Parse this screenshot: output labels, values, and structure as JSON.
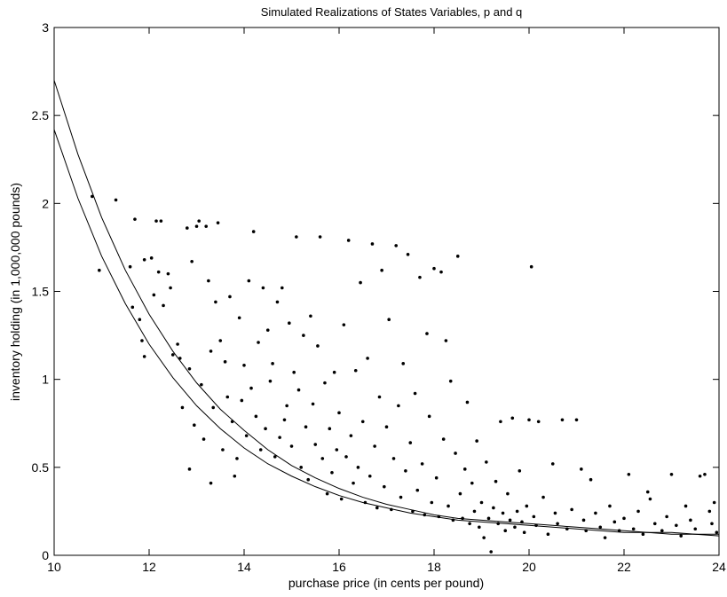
{
  "chart_data": {
    "type": "scatter",
    "title": "Simulated Realizations of States Variables, p and q",
    "xlabel": "purchase price (in cents per pound)",
    "ylabel": "inventory holding (in 1,000,000 pounds)",
    "xlim": [
      10,
      24
    ],
    "ylim": [
      0,
      3
    ],
    "xticks": [
      "10",
      "12",
      "14",
      "16",
      "18",
      "20",
      "22",
      "24"
    ],
    "yticks": [
      "0",
      "0.5",
      "1",
      "1.5",
      "2",
      "2.5",
      "3"
    ],
    "grid": false,
    "legend": "none",
    "marker_color": "#000000",
    "curves": [
      {
        "x": [
          10,
          10.5,
          11,
          11.5,
          12,
          12.5,
          13,
          13.5,
          14,
          14.5,
          15,
          15.5,
          16,
          16.5,
          17,
          17.5,
          18,
          18.5,
          19,
          19.5,
          20,
          20.5,
          21,
          21.5,
          22,
          22.5,
          23,
          23.5,
          24
        ],
        "y": [
          2.7,
          2.28,
          1.92,
          1.62,
          1.37,
          1.16,
          0.98,
          0.83,
          0.71,
          0.6,
          0.51,
          0.44,
          0.38,
          0.33,
          0.29,
          0.26,
          0.23,
          0.21,
          0.2,
          0.19,
          0.18,
          0.17,
          0.16,
          0.15,
          0.14,
          0.13,
          0.13,
          0.12,
          0.12
        ]
      },
      {
        "x": [
          10,
          10.5,
          11,
          11.5,
          12,
          12.5,
          13,
          13.5,
          14,
          14.5,
          15,
          15.5,
          16,
          16.5,
          17,
          17.5,
          18,
          18.5,
          19,
          19.5,
          20,
          20.5,
          21,
          21.5,
          22,
          22.5,
          23,
          23.5,
          24
        ],
        "y": [
          2.42,
          2.03,
          1.7,
          1.43,
          1.2,
          1.01,
          0.85,
          0.72,
          0.61,
          0.52,
          0.45,
          0.39,
          0.34,
          0.3,
          0.27,
          0.24,
          0.22,
          0.2,
          0.19,
          0.18,
          0.17,
          0.16,
          0.15,
          0.14,
          0.13,
          0.13,
          0.12,
          0.12,
          0.11
        ]
      }
    ],
    "points": [
      [
        10.8,
        2.04
      ],
      [
        10.95,
        1.62
      ],
      [
        11.3,
        2.02
      ],
      [
        11.6,
        1.64
      ],
      [
        11.7,
        1.91
      ],
      [
        11.65,
        1.41
      ],
      [
        11.8,
        1.34
      ],
      [
        11.9,
        1.13
      ],
      [
        11.85,
        1.22
      ],
      [
        11.9,
        1.68
      ],
      [
        12.05,
        1.69
      ],
      [
        12.1,
        1.48
      ],
      [
        12.15,
        1.9
      ],
      [
        12.25,
        1.9
      ],
      [
        12.3,
        1.42
      ],
      [
        12.2,
        1.61
      ],
      [
        12.4,
        1.6
      ],
      [
        12.45,
        1.52
      ],
      [
        12.5,
        1.14
      ],
      [
        12.6,
        1.2
      ],
      [
        12.65,
        1.12
      ],
      [
        12.7,
        0.84
      ],
      [
        12.8,
        1.86
      ],
      [
        12.85,
        1.06
      ],
      [
        12.9,
        1.67
      ],
      [
        12.95,
        0.74
      ],
      [
        12.85,
        0.49
      ],
      [
        13.0,
        1.87
      ],
      [
        13.05,
        1.9
      ],
      [
        13.1,
        0.97
      ],
      [
        13.15,
        0.66
      ],
      [
        13.2,
        1.87
      ],
      [
        13.25,
        1.56
      ],
      [
        13.3,
        1.16
      ],
      [
        13.35,
        0.84
      ],
      [
        13.4,
        1.44
      ],
      [
        13.45,
        1.89
      ],
      [
        13.5,
        1.22
      ],
      [
        13.55,
        0.6
      ],
      [
        13.6,
        1.1
      ],
      [
        13.65,
        0.9
      ],
      [
        13.3,
        0.41
      ],
      [
        13.7,
        1.47
      ],
      [
        13.75,
        0.76
      ],
      [
        13.8,
        0.45
      ],
      [
        13.85,
        0.55
      ],
      [
        13.9,
        1.35
      ],
      [
        13.95,
        0.88
      ],
      [
        14.0,
        1.08
      ],
      [
        14.05,
        0.68
      ],
      [
        14.1,
        1.56
      ],
      [
        14.15,
        0.95
      ],
      [
        14.2,
        1.84
      ],
      [
        14.25,
        0.79
      ],
      [
        14.3,
        1.21
      ],
      [
        14.35,
        0.6
      ],
      [
        14.4,
        1.52
      ],
      [
        14.45,
        0.72
      ],
      [
        14.5,
        1.28
      ],
      [
        14.55,
        0.99
      ],
      [
        14.6,
        1.09
      ],
      [
        14.65,
        0.56
      ],
      [
        14.7,
        1.44
      ],
      [
        14.75,
        0.67
      ],
      [
        14.8,
        1.52
      ],
      [
        14.85,
        0.77
      ],
      [
        14.9,
        0.85
      ],
      [
        14.95,
        1.32
      ],
      [
        15.0,
        0.62
      ],
      [
        15.05,
        1.04
      ],
      [
        15.1,
        1.81
      ],
      [
        15.15,
        0.94
      ],
      [
        15.2,
        0.5
      ],
      [
        15.25,
        1.25
      ],
      [
        15.3,
        0.73
      ],
      [
        15.35,
        0.43
      ],
      [
        15.4,
        1.36
      ],
      [
        15.45,
        0.86
      ],
      [
        15.5,
        0.63
      ],
      [
        15.55,
        1.19
      ],
      [
        15.6,
        1.81
      ],
      [
        15.65,
        0.55
      ],
      [
        15.7,
        0.98
      ],
      [
        15.75,
        0.35
      ],
      [
        15.8,
        0.72
      ],
      [
        15.85,
        0.47
      ],
      [
        15.9,
        1.04
      ],
      [
        15.95,
        0.6
      ],
      [
        16.0,
        0.81
      ],
      [
        16.05,
        0.32
      ],
      [
        16.1,
        1.31
      ],
      [
        16.15,
        0.56
      ],
      [
        16.2,
        1.79
      ],
      [
        16.25,
        0.68
      ],
      [
        16.3,
        0.41
      ],
      [
        16.35,
        1.05
      ],
      [
        16.4,
        0.5
      ],
      [
        16.45,
        1.55
      ],
      [
        16.5,
        0.76
      ],
      [
        16.55,
        0.3
      ],
      [
        16.6,
        1.12
      ],
      [
        16.65,
        0.45
      ],
      [
        16.7,
        1.77
      ],
      [
        16.75,
        0.62
      ],
      [
        16.8,
        0.27
      ],
      [
        16.85,
        0.9
      ],
      [
        16.9,
        1.62
      ],
      [
        16.95,
        0.39
      ],
      [
        17.0,
        0.73
      ],
      [
        17.05,
        1.34
      ],
      [
        17.1,
        0.26
      ],
      [
        17.15,
        0.55
      ],
      [
        17.2,
        1.76
      ],
      [
        17.25,
        0.85
      ],
      [
        17.3,
        0.33
      ],
      [
        17.35,
        1.09
      ],
      [
        17.4,
        0.48
      ],
      [
        17.45,
        1.71
      ],
      [
        17.5,
        0.64
      ],
      [
        17.55,
        0.25
      ],
      [
        17.6,
        0.92
      ],
      [
        17.65,
        0.37
      ],
      [
        17.7,
        1.58
      ],
      [
        17.75,
        0.52
      ],
      [
        17.8,
        0.23
      ],
      [
        17.85,
        1.26
      ],
      [
        17.9,
        0.79
      ],
      [
        17.95,
        0.3
      ],
      [
        18.0,
        1.63
      ],
      [
        18.05,
        0.44
      ],
      [
        18.1,
        0.22
      ],
      [
        18.15,
        1.61
      ],
      [
        18.2,
        0.66
      ],
      [
        18.25,
        1.22
      ],
      [
        18.3,
        0.28
      ],
      [
        18.35,
        0.99
      ],
      [
        18.4,
        0.2
      ],
      [
        18.45,
        0.58
      ],
      [
        18.5,
        1.7
      ],
      [
        18.55,
        0.35
      ],
      [
        18.6,
        0.21
      ],
      [
        18.65,
        0.49
      ],
      [
        18.7,
        0.87
      ],
      [
        18.75,
        0.18
      ],
      [
        18.8,
        0.41
      ],
      [
        18.85,
        0.25
      ],
      [
        18.9,
        0.65
      ],
      [
        18.95,
        0.16
      ],
      [
        19.0,
        0.3
      ],
      [
        19.05,
        0.1
      ],
      [
        19.1,
        0.53
      ],
      [
        19.15,
        0.21
      ],
      [
        19.2,
        0.02
      ],
      [
        19.25,
        0.27
      ],
      [
        19.3,
        0.42
      ],
      [
        19.35,
        0.18
      ],
      [
        19.4,
        0.76
      ],
      [
        19.45,
        0.24
      ],
      [
        19.5,
        0.14
      ],
      [
        19.55,
        0.35
      ],
      [
        19.6,
        0.2
      ],
      [
        19.65,
        0.78
      ],
      [
        19.7,
        0.16
      ],
      [
        19.75,
        0.25
      ],
      [
        19.8,
        0.48
      ],
      [
        19.85,
        0.19
      ],
      [
        19.9,
        0.13
      ],
      [
        19.95,
        0.28
      ],
      [
        20.0,
        0.77
      ],
      [
        20.05,
        1.64
      ],
      [
        20.1,
        0.22
      ],
      [
        20.15,
        0.17
      ],
      [
        20.2,
        0.76
      ],
      [
        20.3,
        0.33
      ],
      [
        20.4,
        0.12
      ],
      [
        20.5,
        0.52
      ],
      [
        20.55,
        0.24
      ],
      [
        20.6,
        0.18
      ],
      [
        20.7,
        0.77
      ],
      [
        20.8,
        0.15
      ],
      [
        20.9,
        0.26
      ],
      [
        21.0,
        0.77
      ],
      [
        21.1,
        0.49
      ],
      [
        21.15,
        0.2
      ],
      [
        21.2,
        0.14
      ],
      [
        21.3,
        0.43
      ],
      [
        21.4,
        0.24
      ],
      [
        21.5,
        0.16
      ],
      [
        21.6,
        0.1
      ],
      [
        21.7,
        0.28
      ],
      [
        21.8,
        0.19
      ],
      [
        21.9,
        0.14
      ],
      [
        22.0,
        0.21
      ],
      [
        22.1,
        0.46
      ],
      [
        22.2,
        0.15
      ],
      [
        22.3,
        0.25
      ],
      [
        22.4,
        0.12
      ],
      [
        22.5,
        0.36
      ],
      [
        22.55,
        0.32
      ],
      [
        22.65,
        0.18
      ],
      [
        22.8,
        0.14
      ],
      [
        22.9,
        0.22
      ],
      [
        23.0,
        0.46
      ],
      [
        23.1,
        0.17
      ],
      [
        23.2,
        0.11
      ],
      [
        23.3,
        0.28
      ],
      [
        23.4,
        0.2
      ],
      [
        23.5,
        0.15
      ],
      [
        23.6,
        0.45
      ],
      [
        23.7,
        0.46
      ],
      [
        23.8,
        0.25
      ],
      [
        23.85,
        0.18
      ],
      [
        23.9,
        0.3
      ],
      [
        23.95,
        0.13
      ]
    ]
  }
}
